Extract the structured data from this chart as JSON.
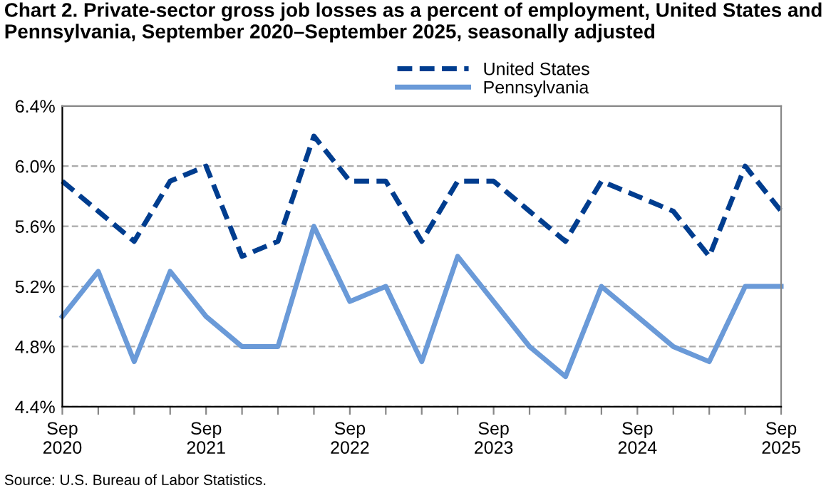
{
  "chart_data": {
    "type": "line",
    "title": "Chart 2. Private-sector gross job losses as a percent of employment, United States and Pennsylvania, September 2020–September 2025, seasonally adjusted",
    "categories": [
      "Sep\n2020",
      null,
      null,
      null,
      "Sep\n2021",
      null,
      null,
      null,
      "Sep\n2022",
      null,
      null,
      null,
      "Sep\n2023",
      null,
      null,
      null,
      "Sep\n2024",
      null,
      null,
      null,
      "Sep\n2025"
    ],
    "series": [
      {
        "name": "United States",
        "color": "#003d8f",
        "line_style": "dashed",
        "values": [
          5.9,
          5.7,
          5.5,
          5.9,
          6.0,
          5.4,
          5.5,
          6.2,
          5.9,
          5.9,
          5.5,
          5.9,
          5.9,
          5.7,
          5.5,
          5.9,
          5.8,
          5.7,
          5.4,
          6.0,
          5.7
        ]
      },
      {
        "name": "Pennsylvania",
        "color": "#6a9ad8",
        "line_style": "solid",
        "values": [
          5.0,
          5.3,
          4.7,
          5.3,
          5.0,
          4.8,
          4.8,
          5.6,
          5.1,
          5.2,
          4.7,
          5.4,
          5.1,
          4.8,
          4.6,
          5.2,
          5.0,
          4.8,
          4.7,
          5.2,
          5.2
        ]
      }
    ],
    "ylim": [
      4.4,
      6.4
    ],
    "yticks": [
      {
        "value": 4.4,
        "label": "4.4%"
      },
      {
        "value": 4.8,
        "label": "4.8%"
      },
      {
        "value": 5.2,
        "label": "5.2%"
      },
      {
        "value": 5.6,
        "label": "5.6%"
      },
      {
        "value": 6.0,
        "label": "6.0%"
      },
      {
        "value": 6.4,
        "label": "6.4%"
      }
    ],
    "grid": "y",
    "legend": "top",
    "marker": "none",
    "annotations": [
      "Source: U.S. Bureau of Labor Statistics."
    ]
  }
}
